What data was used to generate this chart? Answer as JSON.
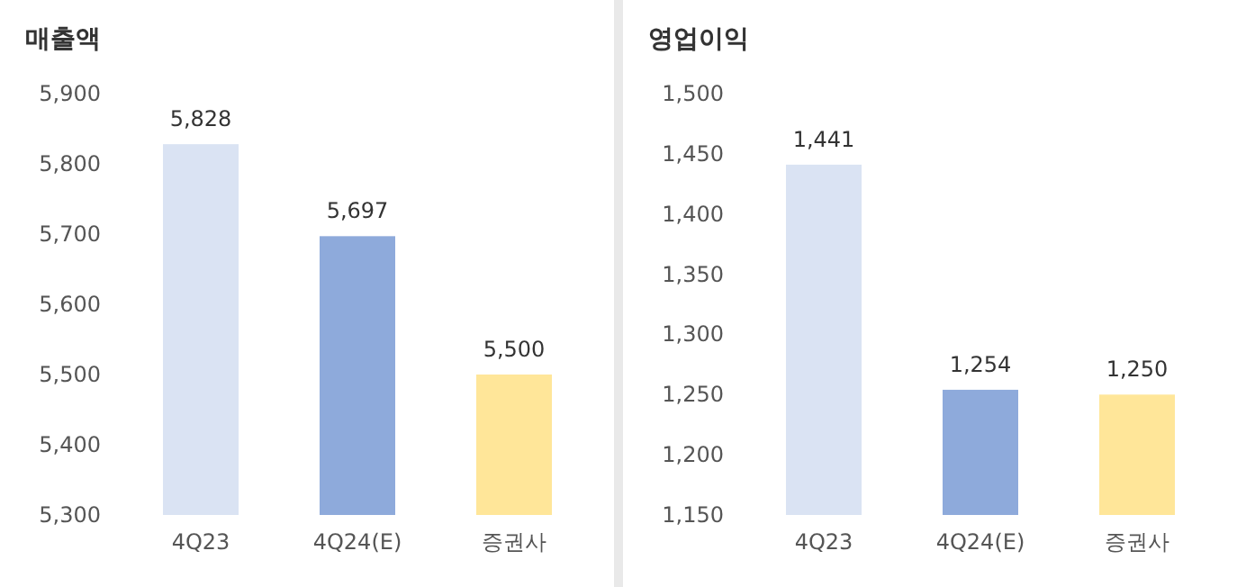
{
  "chart_data": [
    {
      "type": "bar",
      "title": "매출액",
      "categories": [
        "4Q23",
        "4Q24(E)",
        "증권사"
      ],
      "values": [
        5828,
        5697,
        5500
      ],
      "colors": [
        "#dae3f3",
        "#8eaadb",
        "#ffe699"
      ],
      "value_labels": [
        "5,828",
        "5,697",
        "5,500"
      ],
      "ylim": [
        5300,
        5900
      ],
      "yticks": [
        {
          "value": 5300,
          "label": "5,300"
        },
        {
          "value": 5400,
          "label": "5,400"
        },
        {
          "value": 5500,
          "label": "5,500"
        },
        {
          "value": 5600,
          "label": "5,600"
        },
        {
          "value": 5700,
          "label": "5,700"
        },
        {
          "value": 5800,
          "label": "5,800"
        },
        {
          "value": 5900,
          "label": "5,900"
        }
      ]
    },
    {
      "type": "bar",
      "title": "영업이익",
      "categories": [
        "4Q23",
        "4Q24(E)",
        "증권사"
      ],
      "values": [
        1441,
        1254,
        1250
      ],
      "colors": [
        "#dae3f3",
        "#8eaadb",
        "#ffe699"
      ],
      "value_labels": [
        "1,441",
        "1,254",
        "1,250"
      ],
      "ylim": [
        1150,
        1500
      ],
      "yticks": [
        {
          "value": 1150,
          "label": "1,150"
        },
        {
          "value": 1200,
          "label": "1,200"
        },
        {
          "value": 1250,
          "label": "1,250"
        },
        {
          "value": 1300,
          "label": "1,300"
        },
        {
          "value": 1350,
          "label": "1,350"
        },
        {
          "value": 1400,
          "label": "1,400"
        },
        {
          "value": 1450,
          "label": "1,450"
        },
        {
          "value": 1500,
          "label": "1,500"
        }
      ]
    }
  ]
}
